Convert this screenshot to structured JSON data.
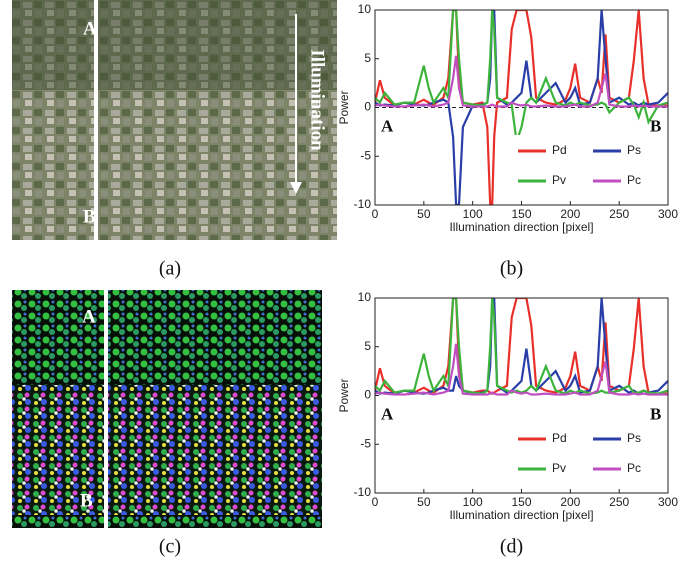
{
  "images": [
    {
      "caption": "(a)",
      "labels": [
        "A",
        "B"
      ],
      "annotation": "Illumination"
    },
    {
      "caption": "(c)",
      "labels": [
        "A",
        "B"
      ]
    }
  ],
  "chart_data": [
    {
      "type": "line",
      "caption": "(b)",
      "xlabel": "Illumination direction [pixel]",
      "ylabel": "Power",
      "xlim": [
        0,
        300
      ],
      "ylim": [
        -10,
        10
      ],
      "xticks": [
        0,
        50,
        100,
        150,
        200,
        250,
        300
      ],
      "yticks": [
        -10,
        -5,
        0,
        5,
        10
      ],
      "reference_line": 0,
      "legend": "lower right",
      "annotations": [
        "A",
        "B"
      ],
      "x": [
        0,
        5,
        10,
        20,
        30,
        40,
        50,
        55,
        60,
        70,
        75,
        80,
        83,
        86,
        90,
        100,
        110,
        115,
        118,
        120,
        122,
        125,
        135,
        140,
        145,
        150,
        155,
        160,
        165,
        175,
        185,
        195,
        200,
        205,
        210,
        220,
        228,
        232,
        236,
        240,
        250,
        260,
        265,
        270,
        275,
        280,
        290,
        300
      ],
      "series": [
        {
          "name": "Pd",
          "color": "#e8302a",
          "values": [
            0.5,
            2.8,
            1.0,
            0.2,
            0.5,
            0.3,
            0.8,
            0.5,
            0.3,
            1.0,
            3.0,
            10,
            10,
            3,
            0.5,
            0.3,
            0.5,
            -2,
            -10,
            -10,
            -3,
            0.5,
            1.0,
            8,
            10,
            10,
            10,
            7.2,
            1.0,
            0.5,
            0.3,
            0.8,
            2.0,
            4.5,
            1.0,
            0.5,
            3.0,
            1.5,
            7.5,
            1.0,
            0.5,
            1.0,
            4.8,
            10,
            3.0,
            0.3,
            0.2,
            0.2
          ]
        },
        {
          "name": "Ps",
          "color": "#2a3ea8",
          "values": [
            0.5,
            0.2,
            0.3,
            0.2,
            0.5,
            0.3,
            0.2,
            0.3,
            0.5,
            0.8,
            0.5,
            -3,
            -10,
            -10,
            -2,
            0.2,
            0.3,
            0.5,
            3,
            10,
            10,
            1,
            0.3,
            0.5,
            1,
            1.5,
            4.8,
            1,
            0.5,
            1.5,
            2.5,
            0.5,
            1,
            2,
            0.3,
            0.5,
            3,
            10,
            5,
            0.5,
            1,
            0.3,
            0.5,
            0.2,
            0.5,
            0.3,
            0.5,
            1.5
          ]
        },
        {
          "name": "Pv",
          "color": "#3cb43c",
          "values": [
            1,
            0.5,
            1.5,
            0.3,
            0.5,
            0.5,
            4.3,
            2,
            0.5,
            2,
            1,
            10,
            10,
            5,
            0.5,
            0.3,
            0.2,
            0.5,
            5,
            10,
            8,
            1,
            0.5,
            0.3,
            -3.5,
            -2,
            0.5,
            1,
            0.5,
            3,
            0.5,
            0.2,
            0.5,
            0.3,
            0.5,
            0.2,
            0.3,
            0.5,
            0.3,
            -0.5,
            0.5,
            1,
            0.3,
            -1,
            0.5,
            -1.5,
            0.2,
            0.5
          ]
        },
        {
          "name": "Pc",
          "color": "#c050c0",
          "values": [
            0.2,
            0.3,
            0.2,
            0.1,
            0.1,
            0.2,
            0.3,
            0.2,
            0.1,
            0.3,
            0.5,
            3,
            5.3,
            2,
            0.2,
            0.1,
            0.1,
            0.1,
            0.2,
            0.3,
            0.2,
            0.1,
            0.1,
            0.5,
            0.3,
            0.2,
            0.3,
            0.1,
            0.1,
            0.2,
            0.1,
            0.1,
            0.2,
            0.3,
            0.1,
            0.1,
            0.5,
            2,
            3.5,
            0.3,
            0.1,
            0.1,
            0.2,
            0.1,
            0.2,
            0.1,
            0.1,
            0.1
          ]
        }
      ]
    },
    {
      "type": "line",
      "caption": "(d)",
      "xlabel": "Illumination direction [pixel]",
      "ylabel": "Power",
      "xlim": [
        0,
        300
      ],
      "ylim": [
        -10,
        10
      ],
      "xticks": [
        0,
        50,
        100,
        150,
        200,
        250,
        300
      ],
      "yticks": [
        -10,
        -5,
        0,
        5,
        10
      ],
      "legend": "lower right",
      "annotations": [
        "A",
        "B"
      ],
      "x": [
        0,
        5,
        10,
        20,
        30,
        40,
        50,
        55,
        60,
        70,
        75,
        80,
        83,
        86,
        90,
        100,
        110,
        115,
        118,
        120,
        122,
        125,
        135,
        140,
        145,
        150,
        155,
        160,
        165,
        175,
        185,
        195,
        200,
        205,
        210,
        220,
        228,
        232,
        236,
        240,
        250,
        260,
        265,
        270,
        275,
        280,
        290,
        300
      ],
      "series": [
        {
          "name": "Pd",
          "color": "#e8302a",
          "values": [
            0.5,
            2.8,
            1.0,
            0.2,
            0.5,
            0.3,
            0.8,
            0.5,
            0.3,
            1.0,
            3.0,
            10,
            10,
            3,
            0.5,
            0.3,
            0.5,
            0.5,
            0.3,
            0.2,
            0.3,
            0.5,
            1.0,
            8,
            10,
            10,
            10,
            7.2,
            1.0,
            0.5,
            0.3,
            0.8,
            2.0,
            4.5,
            1.0,
            0.5,
            3.0,
            1.5,
            7.5,
            1.0,
            0.5,
            1.0,
            4.8,
            10,
            3.0,
            0.3,
            0.2,
            0.2
          ]
        },
        {
          "name": "Ps",
          "color": "#2a3ea8",
          "values": [
            0.5,
            0.2,
            0.3,
            0.2,
            0.5,
            0.3,
            0.2,
            0.3,
            0.5,
            0.8,
            0.5,
            0.5,
            2,
            1,
            0.5,
            0.2,
            0.3,
            0.5,
            3,
            10,
            10,
            1,
            0.3,
            0.5,
            1,
            1.5,
            4.8,
            1,
            0.5,
            1.5,
            2.5,
            0.5,
            1,
            2,
            0.3,
            0.5,
            3,
            10,
            5,
            0.5,
            1,
            0.3,
            0.5,
            0.2,
            0.5,
            0.3,
            0.5,
            1.5
          ]
        },
        {
          "name": "Pv",
          "color": "#3cb43c",
          "values": [
            1,
            0.5,
            1.5,
            0.3,
            0.5,
            0.5,
            4.3,
            2,
            0.5,
            2,
            1,
            10,
            10,
            5,
            0.5,
            0.3,
            0.2,
            0.5,
            5,
            10,
            8,
            1,
            0.5,
            0.3,
            0.5,
            0.3,
            0.5,
            1,
            0.5,
            3,
            0.5,
            0.2,
            0.5,
            0.3,
            0.5,
            0.2,
            0.3,
            0.5,
            0.3,
            0.3,
            0.5,
            1,
            0.3,
            0.3,
            0.5,
            0.3,
            0.2,
            0.5
          ]
        },
        {
          "name": "Pc",
          "color": "#c050c0",
          "values": [
            0.2,
            0.3,
            0.2,
            0.1,
            0.1,
            0.2,
            0.3,
            0.2,
            0.1,
            0.3,
            0.5,
            3,
            5.3,
            2,
            0.2,
            0.1,
            0.1,
            0.1,
            0.2,
            0.3,
            0.2,
            0.1,
            0.1,
            0.5,
            0.3,
            0.2,
            0.3,
            0.1,
            0.1,
            0.2,
            0.1,
            0.1,
            0.2,
            0.3,
            0.1,
            0.1,
            0.5,
            2,
            3.5,
            0.3,
            0.1,
            0.1,
            0.2,
            0.1,
            0.2,
            0.1,
            0.1,
            0.1
          ]
        }
      ]
    }
  ]
}
